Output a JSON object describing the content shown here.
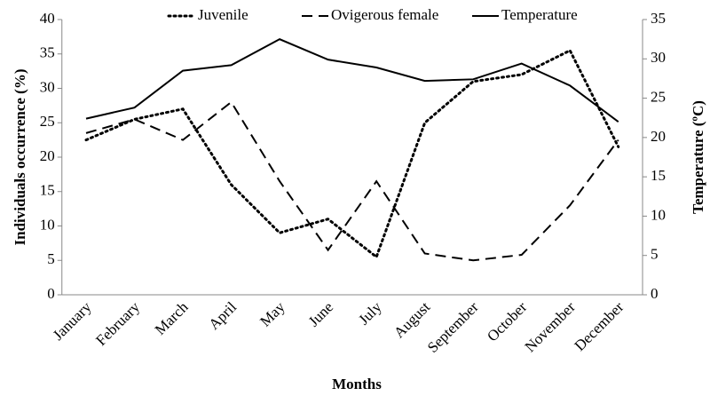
{
  "chart_data": {
    "type": "line",
    "x_label": "Months",
    "y_label": "Individuals occurrence (%)",
    "y2_label": "Temperature (ºC)",
    "categories": [
      "January",
      "February",
      "March",
      "April",
      "May",
      "June",
      "July",
      "August",
      "September",
      "October",
      "November",
      "December"
    ],
    "series": [
      {
        "name": "Juvenile",
        "color": "#000000",
        "style": "dotted",
        "values": [
          22.5,
          25.5,
          27,
          16,
          9,
          11,
          5.5,
          25,
          31,
          32,
          35.5,
          21.5
        ]
      },
      {
        "name": "Ovigerous female",
        "color": "#000000",
        "style": "dashed",
        "values": [
          23.5,
          25.5,
          22.5,
          28,
          16.5,
          6.5,
          16.5,
          6,
          5,
          5.8,
          13,
          22.5
        ]
      },
      {
        "name": "Temperature",
        "color": "#000000",
        "style": "solid",
        "axis": "y2",
        "values": [
          22.4,
          23.8,
          28.5,
          29.2,
          32.5,
          29.9,
          28.9,
          27.2,
          27.4,
          29.4,
          26.6,
          22
        ]
      }
    ],
    "ylim": [
      0,
      40
    ],
    "yticks": [
      0,
      5,
      10,
      15,
      20,
      25,
      30,
      35,
      40
    ],
    "y2lim": [
      0,
      35
    ],
    "y2ticks": [
      0,
      5,
      10,
      15,
      20,
      25,
      30,
      35
    ],
    "legend": "top"
  }
}
